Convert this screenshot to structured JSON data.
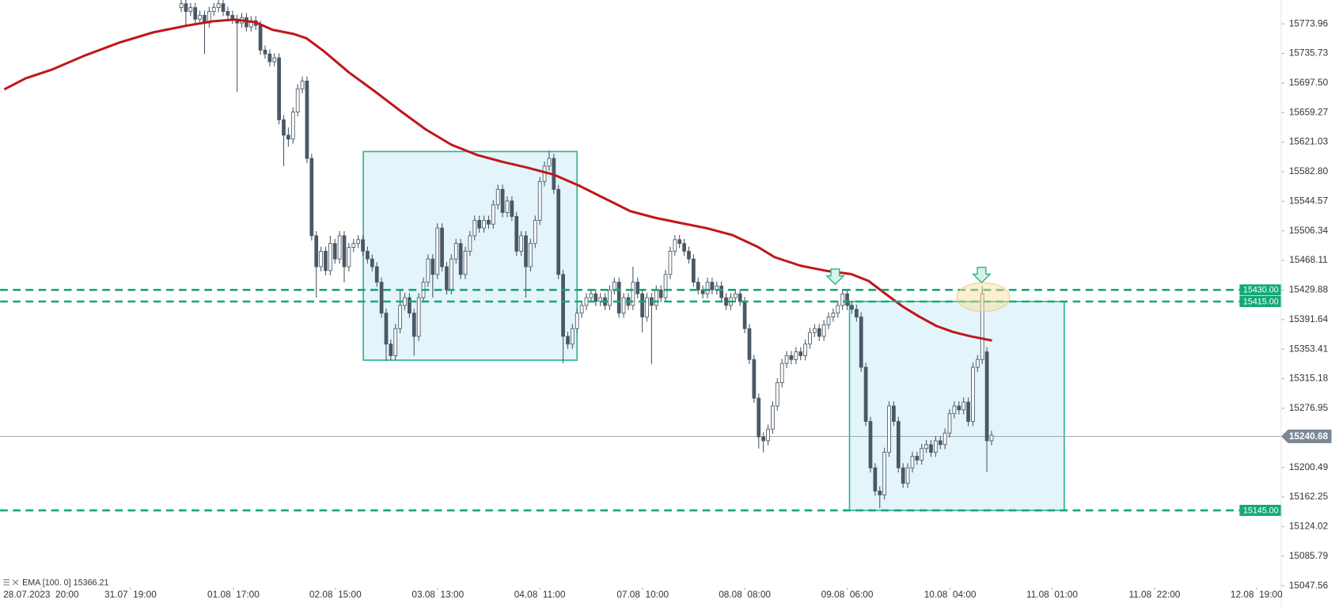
{
  "chart_data": {
    "type": "candlestick",
    "xlim": [
      -0.9,
      273.3
    ],
    "ylim": [
      15045.4,
      15804.8
    ],
    "xticks": [
      {
        "value": 7.9,
        "label": "28.07.2023  20:00"
      },
      {
        "value": 27.1,
        "label": "31.07  19:00"
      },
      {
        "value": 49.2,
        "label": "01.08  17:00"
      },
      {
        "value": 71.1,
        "label": "02.08  15:00"
      },
      {
        "value": 93.1,
        "label": "03.08  13:00"
      },
      {
        "value": 115,
        "label": "04.08  11:00"
      },
      {
        "value": 137.1,
        "label": "07.08  10:00"
      },
      {
        "value": 159,
        "label": "08.08  08:00"
      },
      {
        "value": 181,
        "label": "09.08  06:00"
      },
      {
        "value": 203.1,
        "label": "10.08  04:00"
      },
      {
        "value": 225,
        "label": "11.08  01:00"
      },
      {
        "value": 247,
        "label": "11.08  22:00"
      },
      {
        "value": 268.9,
        "label": "12.08  19:00"
      }
    ],
    "yticks": [
      15773.96,
      15735.73,
      {
        "value": 15697.5,
        "label": "15697.50"
      },
      15659.27,
      15621.03,
      {
        "value": 15582.8,
        "label": "15582.80"
      },
      15544.57,
      15506.34,
      15468.11,
      15429.88,
      15391.64,
      15353.41,
      15315.18,
      15276.95,
      15200.49,
      15162.25,
      15124.02,
      15085.79,
      15047.56
    ],
    "up_color": "#ffffff",
    "down_color": "#4a5866",
    "wick_color": "#4a5866",
    "candles": {
      "x": [
        38,
        39,
        40,
        41,
        42,
        43,
        44,
        45,
        46,
        47,
        48,
        49,
        50,
        51,
        52,
        53,
        54,
        55,
        56,
        57,
        58,
        59,
        60,
        61,
        62,
        63,
        64,
        65,
        66,
        67,
        68,
        69,
        70,
        71,
        72,
        73,
        74,
        75,
        76,
        77,
        78,
        79,
        80,
        81,
        82,
        83,
        84,
        85,
        86,
        87,
        88,
        89,
        90,
        91,
        92,
        93,
        94,
        95,
        96,
        97,
        98,
        99,
        100,
        101,
        102,
        103,
        104,
        105,
        106,
        107,
        108,
        109,
        110,
        111,
        112,
        113,
        114,
        115,
        116,
        117,
        118,
        119,
        120,
        121,
        122,
        123,
        124,
        125,
        126,
        127,
        128,
        129,
        130,
        131,
        132,
        133,
        134,
        135,
        136,
        137,
        138,
        139,
        140,
        141,
        142,
        143,
        144,
        145,
        146,
        147,
        148,
        149,
        150,
        151,
        152,
        153,
        154,
        155,
        156,
        157,
        158,
        159,
        160,
        161,
        162,
        163,
        164,
        165,
        166,
        167,
        168,
        169,
        170,
        171,
        172,
        173,
        174,
        175,
        176,
        177,
        178,
        179,
        180,
        181,
        182,
        183,
        184,
        185,
        186,
        187,
        188,
        189,
        190,
        191,
        192,
        193,
        194,
        195,
        196,
        197,
        198,
        199,
        200,
        201,
        202,
        203,
        204,
        205,
        206,
        207,
        208,
        209,
        210,
        211,
        212
      ],
      "open": [
        15795,
        15800,
        15790,
        15795,
        15780,
        15785,
        15775,
        15790,
        15795,
        15800,
        15790,
        15785,
        15780,
        15775,
        15782,
        15770,
        15778,
        15772,
        15740,
        15735,
        15725,
        15730,
        15650,
        15630,
        15625,
        15660,
        15690,
        15700,
        15600,
        15500,
        15460,
        15480,
        15455,
        15490,
        15470,
        15500,
        15460,
        15485,
        15490,
        15495,
        15480,
        15470,
        15460,
        15440,
        15400,
        15360,
        15345,
        15380,
        15410,
        15420,
        15400,
        15370,
        15420,
        15440,
        15470,
        15450,
        15510,
        15460,
        15430,
        15470,
        15490,
        15450,
        15480,
        15500,
        15520,
        15510,
        15520,
        15515,
        15540,
        15560,
        15530,
        15545,
        15525,
        15480,
        15500,
        15460,
        15490,
        15520,
        15570,
        15590,
        15600,
        15560,
        15450,
        15370,
        15360,
        15380,
        15400,
        15410,
        15420,
        15425,
        15415,
        15420,
        15410,
        15430,
        15440,
        15400,
        15420,
        15410,
        15440,
        15425,
        15395,
        15420,
        15410,
        15430,
        15420,
        15450,
        15480,
        15495,
        15490,
        15480,
        15470,
        15440,
        15430,
        15425,
        15440,
        15430,
        15435,
        15420,
        15410,
        15420,
        15425,
        15415,
        15380,
        15340,
        15290,
        15240,
        15235,
        15250,
        15280,
        15310,
        15335,
        15345,
        15340,
        15350,
        15345,
        15360,
        15375,
        15380,
        15370,
        15385,
        15395,
        15400,
        15410,
        15425,
        15410,
        15405,
        15395,
        15330,
        15260,
        15200,
        15170,
        15165,
        15220,
        15280,
        15260,
        15200,
        15180,
        15200,
        15215,
        15210,
        15225,
        15230,
        15220,
        15235,
        15230,
        15245,
        15270,
        15280,
        15275,
        15285,
        15260,
        15330,
        15340,
        15350,
        15235
      ],
      "high": [
        15806,
        15806,
        15801,
        15801,
        15791,
        15791,
        15796,
        15801,
        15806,
        15806,
        15796,
        15791,
        15786,
        15788,
        15788,
        15784,
        15784,
        15778,
        15746,
        15741,
        15736,
        15736,
        15656,
        15640,
        15666,
        15696,
        15706,
        15706,
        15606,
        15506,
        15486,
        15486,
        15500,
        15496,
        15506,
        15506,
        15491,
        15496,
        15501,
        15501,
        15486,
        15476,
        15466,
        15446,
        15406,
        15366,
        15386,
        15430,
        15426,
        15426,
        15406,
        15426,
        15446,
        15476,
        15476,
        15516,
        15516,
        15466,
        15476,
        15496,
        15496,
        15486,
        15506,
        15526,
        15526,
        15526,
        15526,
        15546,
        15566,
        15566,
        15551,
        15551,
        15531,
        15506,
        15506,
        15496,
        15526,
        15576,
        15596,
        15610,
        15606,
        15566,
        15456,
        15376,
        15386,
        15406,
        15416,
        15426,
        15431,
        15431,
        15426,
        15426,
        15436,
        15446,
        15446,
        15426,
        15426,
        15460,
        15446,
        15431,
        15426,
        15426,
        15436,
        15436,
        15456,
        15486,
        15501,
        15501,
        15496,
        15486,
        15476,
        15446,
        15436,
        15446,
        15446,
        15441,
        15441,
        15426,
        15426,
        15431,
        15431,
        15421,
        15386,
        15346,
        15296,
        15246,
        15256,
        15286,
        15316,
        15341,
        15351,
        15351,
        15356,
        15356,
        15366,
        15381,
        15386,
        15386,
        15391,
        15401,
        15406,
        15416,
        15431,
        15431,
        15416,
        15411,
        15401,
        15336,
        15266,
        15206,
        15176,
        15226,
        15286,
        15286,
        15266,
        15206,
        15206,
        15221,
        15221,
        15231,
        15236,
        15236,
        15241,
        15241,
        15251,
        15276,
        15286,
        15286,
        15291,
        15291,
        15336,
        15346,
        15435,
        15356,
        15248
      ],
      "low": [
        15789,
        15770,
        15784,
        15774,
        15774,
        15735,
        15769,
        15784,
        15789,
        15784,
        15779,
        15774,
        15686,
        15769,
        15764,
        15764,
        15766,
        15734,
        15729,
        15719,
        15719,
        15644,
        15590,
        15615,
        15619,
        15654,
        15684,
        15594,
        15494,
        15420,
        15454,
        15449,
        15449,
        15464,
        15464,
        15440,
        15454,
        15479,
        15484,
        15474,
        15464,
        15454,
        15434,
        15394,
        15338,
        15339,
        15339,
        15374,
        15404,
        15394,
        15345,
        15364,
        15414,
        15434,
        15420,
        15444,
        15454,
        15424,
        15424,
        15464,
        15444,
        15444,
        15474,
        15494,
        15504,
        15504,
        15509,
        15509,
        15534,
        15524,
        15524,
        15519,
        15474,
        15474,
        15420,
        15454,
        15484,
        15514,
        15564,
        15584,
        15554,
        15444,
        15335,
        15354,
        15354,
        15374,
        15394,
        15404,
        15414,
        15409,
        15409,
        15404,
        15404,
        15424,
        15394,
        15394,
        15404,
        15404,
        15419,
        15375,
        15389,
        15334,
        15404,
        15414,
        15414,
        15444,
        15474,
        15484,
        15474,
        15464,
        15434,
        15424,
        15419,
        15419,
        15424,
        15424,
        15414,
        15404,
        15404,
        15414,
        15409,
        15374,
        15334,
        15284,
        15225,
        15220,
        15229,
        15244,
        15274,
        15304,
        15329,
        15334,
        15334,
        15339,
        15339,
        15354,
        15369,
        15364,
        15364,
        15379,
        15389,
        15394,
        15404,
        15404,
        15399,
        15389,
        15324,
        15254,
        15194,
        15164,
        15148,
        15159,
        15214,
        15254,
        15194,
        15174,
        15174,
        15194,
        15204,
        15204,
        15219,
        15214,
        15214,
        15224,
        15224,
        15239,
        15264,
        15269,
        15269,
        15254,
        15254,
        15324,
        15334,
        15195,
        15229
      ],
      "close": [
        15800,
        15790,
        15795,
        15780,
        15785,
        15775,
        15790,
        15795,
        15800,
        15790,
        15785,
        15780,
        15775,
        15782,
        15770,
        15778,
        15772,
        15740,
        15735,
        15725,
        15730,
        15650,
        15630,
        15625,
        15660,
        15690,
        15700,
        15600,
        15500,
        15460,
        15480,
        15455,
        15490,
        15470,
        15500,
        15460,
        15485,
        15490,
        15495,
        15480,
        15470,
        15460,
        15440,
        15400,
        15360,
        15345,
        15380,
        15410,
        15420,
        15400,
        15370,
        15420,
        15440,
        15470,
        15450,
        15510,
        15460,
        15430,
        15470,
        15490,
        15450,
        15480,
        15500,
        15520,
        15510,
        15520,
        15515,
        15540,
        15560,
        15530,
        15545,
        15525,
        15480,
        15500,
        15460,
        15490,
        15520,
        15570,
        15590,
        15600,
        15560,
        15450,
        15370,
        15360,
        15380,
        15400,
        15410,
        15420,
        15425,
        15415,
        15420,
        15410,
        15430,
        15440,
        15400,
        15420,
        15410,
        15440,
        15425,
        15395,
        15420,
        15410,
        15430,
        15420,
        15450,
        15480,
        15495,
        15490,
        15480,
        15470,
        15440,
        15430,
        15425,
        15440,
        15430,
        15435,
        15420,
        15410,
        15420,
        15425,
        15415,
        15380,
        15340,
        15290,
        15240,
        15235,
        15250,
        15280,
        15310,
        15335,
        15345,
        15340,
        15350,
        15345,
        15360,
        15375,
        15380,
        15370,
        15385,
        15395,
        15400,
        15410,
        15425,
        15410,
        15405,
        15395,
        15330,
        15260,
        15200,
        15170,
        15165,
        15220,
        15280,
        15260,
        15200,
        15180,
        15200,
        15215,
        15210,
        15225,
        15230,
        15220,
        15235,
        15230,
        15245,
        15270,
        15280,
        15275,
        15285,
        15260,
        15330,
        15340,
        15425,
        15235,
        15242
      ]
    },
    "ema": {
      "color": "#c0161a",
      "x": [
        0,
        4.6,
        10.1,
        17.4,
        24.7,
        32,
        39.3,
        44.8,
        49.4,
        53.9,
        57.6,
        62.2,
        64.9,
        68.6,
        74,
        79.5,
        85,
        90.5,
        96,
        101.5,
        106.9,
        112.4,
        117.9,
        123.4,
        128.9,
        134.4,
        139.9,
        145.3,
        150.8,
        156.3,
        161.8,
        165.4,
        170.9,
        176.4,
        181.9,
        185.6,
        189.2,
        192.9,
        196.5,
        200.2,
        203.8,
        207.5,
        212.1
      ],
      "values": [
        15689.2,
        15703.5,
        15714.6,
        15733.3,
        15749.8,
        15763,
        15771.8,
        15777.3,
        15779.5,
        15776.2,
        15766.3,
        15760.8,
        15755.3,
        15738.8,
        15711.2,
        15687,
        15661.7,
        15637.5,
        15617.7,
        15604.5,
        15595.7,
        15588,
        15579.2,
        15564.9,
        15548.4,
        15531.9,
        15523,
        15516.4,
        15509.8,
        15501,
        15485.6,
        15472.4,
        15461.4,
        15454.8,
        15450.4,
        15441.6,
        15425.1,
        15408.6,
        15395.4,
        15383.3,
        15375.6,
        15370.1,
        15364.6
      ]
    },
    "indicator_label": "EMA [100. 0] 15366.21",
    "zones": [
      {
        "x": [
          77.1,
          123
        ],
        "y": [
          15339.2,
          15608.9
        ]
      },
      {
        "x": [
          181.5,
          227.6
        ],
        "y": [
          15145,
          15415
        ]
      }
    ],
    "zone_color": "#e3f4fb",
    "zone_border": "#2bb191",
    "levels": [
      {
        "value": 15430,
        "label": "15430.00"
      },
      {
        "value": 15415,
        "label": "15415.00"
      },
      {
        "value": 15145,
        "label": "15145.00"
      }
    ],
    "level_color": "#14a876",
    "last_price": 15240.68,
    "last_price_color": "#7b8794"
  }
}
